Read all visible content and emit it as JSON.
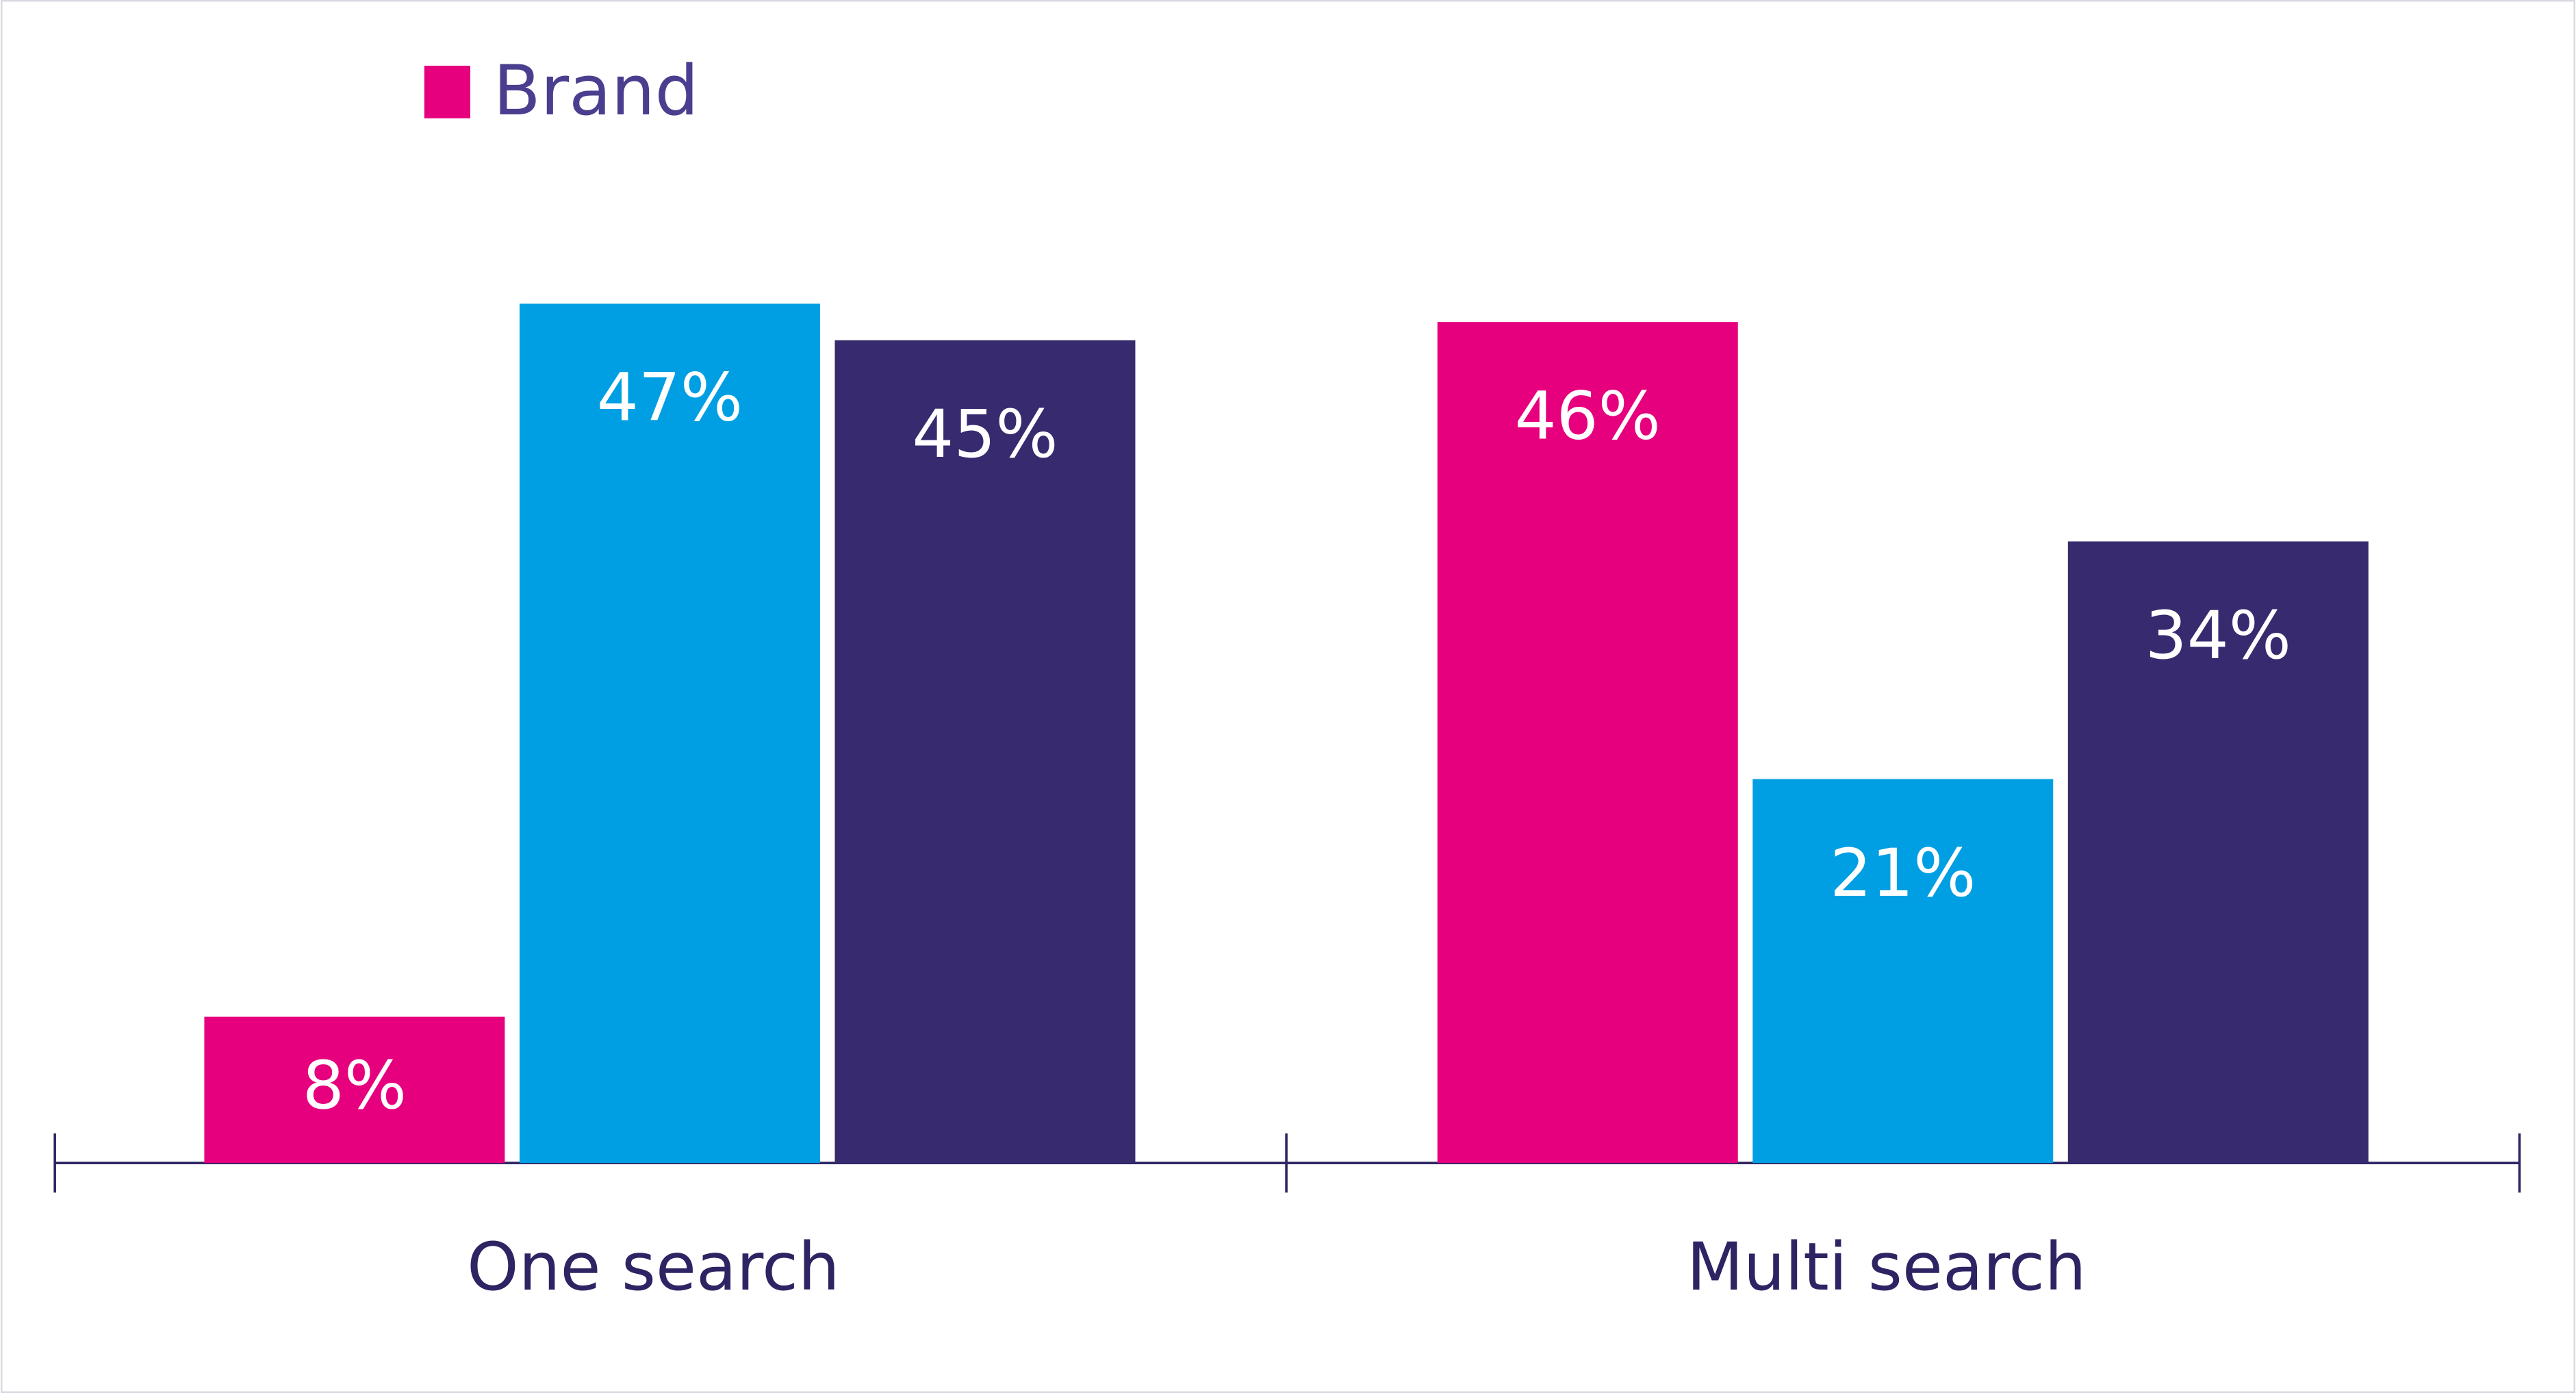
{
  "chart_data": {
    "type": "bar",
    "categories": [
      "One search",
      "Multi search"
    ],
    "series": [
      {
        "name": "Brand",
        "color": "#e6007e",
        "values": [
          8,
          46
        ],
        "value_labels": [
          "8%",
          "46%"
        ]
      },
      {
        "color": "#009fe3",
        "values": [
          47,
          21
        ],
        "value_labels": [
          "47%",
          "21%"
        ]
      },
      {
        "color": "#372a6e",
        "values": [
          45,
          34
        ],
        "value_labels": [
          "45%",
          "34%"
        ]
      }
    ]
  }
}
